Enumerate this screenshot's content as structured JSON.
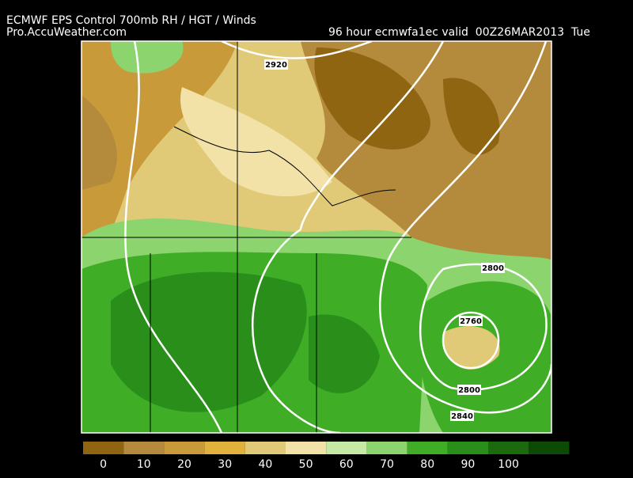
{
  "header": {
    "title": "ECMWF EPS Control 700mb RH / HGT / Winds",
    "source": "Pro.AccuWeather.com",
    "valid": "96 hour ecmwfa1ec valid  00Z26MAR2013  Tue"
  },
  "contours": [
    "2920",
    "2800",
    "2760",
    "2800",
    "2840"
  ],
  "colorbar": {
    "labels": [
      0,
      10,
      20,
      30,
      40,
      50,
      60,
      70,
      80,
      90,
      100
    ],
    "colors": [
      "#8f6512",
      "#b48b3c",
      "#c89a3a",
      "#e0b23c",
      "#e0ca78",
      "#f2e2a8",
      "#c6eaa6",
      "#8cd46e",
      "#3fae26",
      "#2a8e1a",
      "#1b6a0e",
      "#0d4a06"
    ]
  }
}
